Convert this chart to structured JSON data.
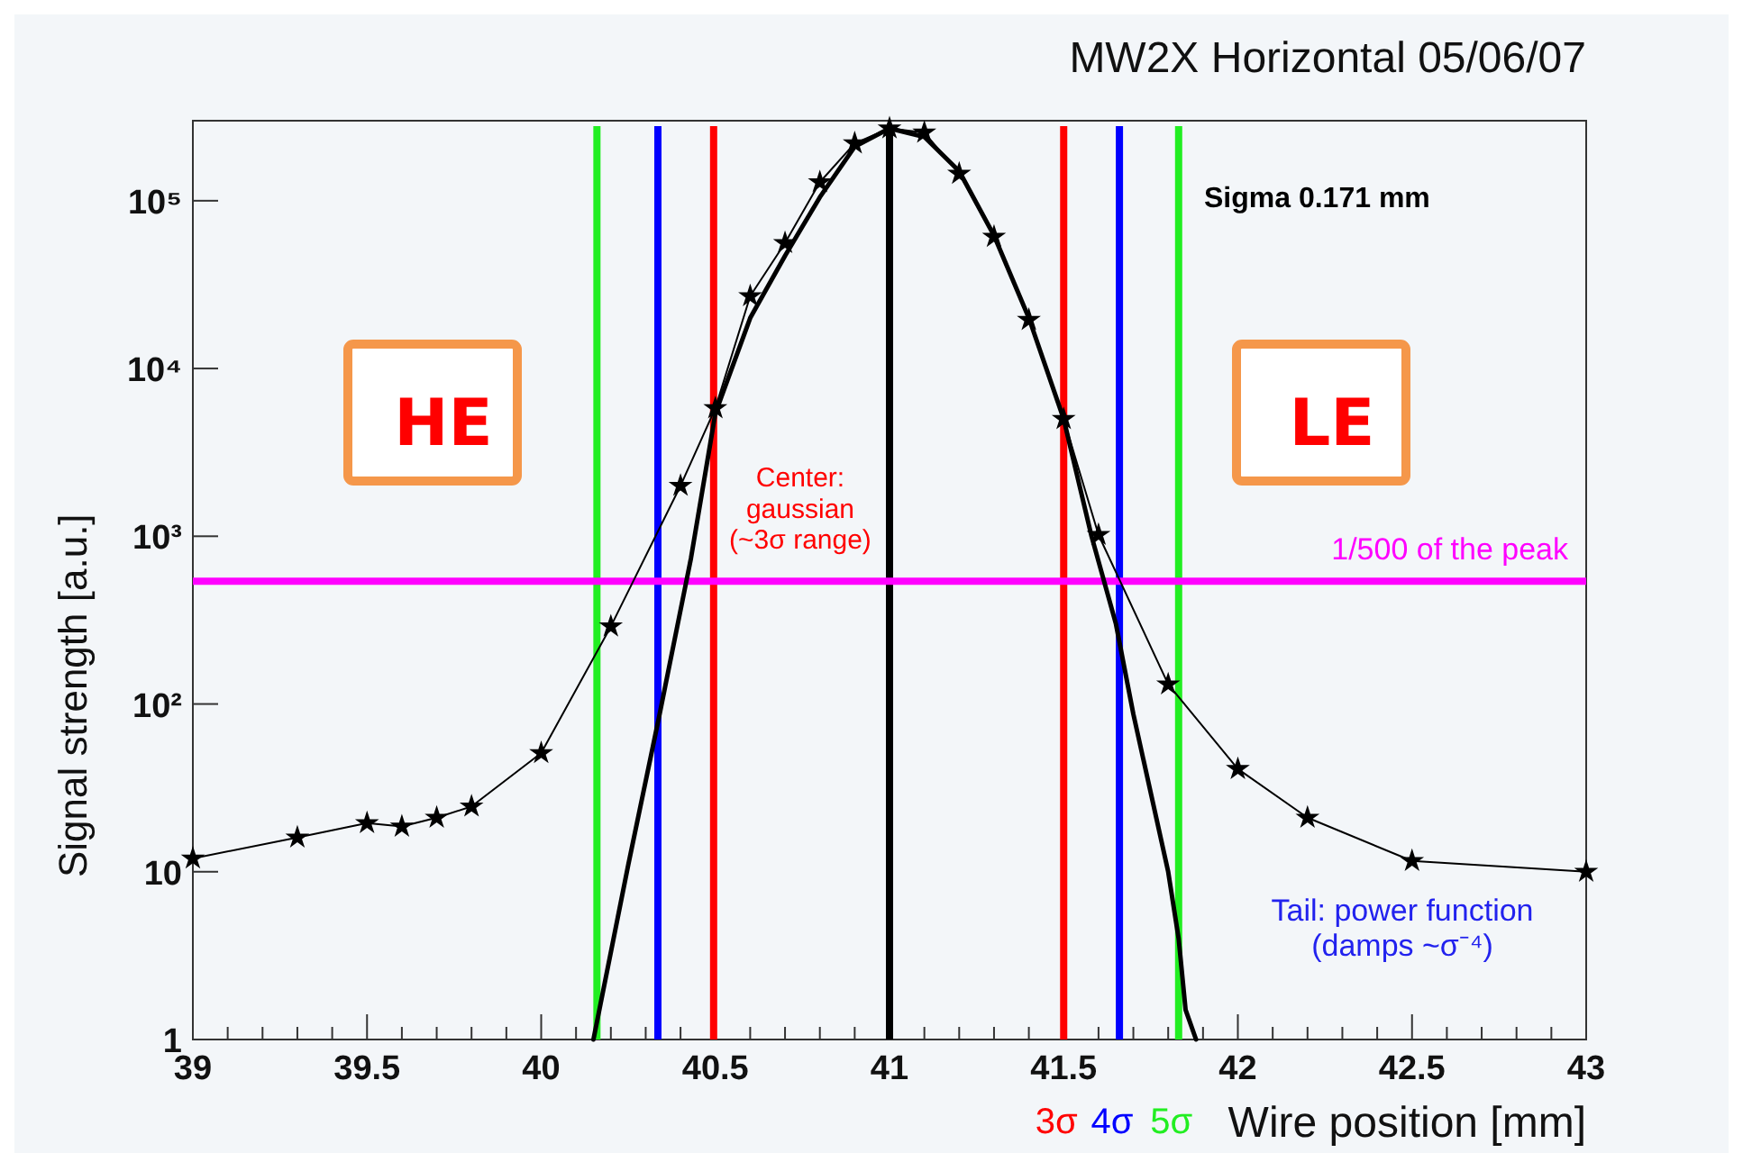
{
  "chart_data": {
    "type": "line",
    "title": "MW2X Horizontal 05/06/07",
    "xlabel": "Wire position [mm]",
    "ylabel": "Signal strength [a.u.]",
    "log": "y",
    "grid": false,
    "xlim": [
      39,
      43
    ],
    "xticks": [
      39,
      {
        "value": 39.1,
        "label": null
      },
      {
        "value": 39.2,
        "label": null
      },
      {
        "value": 39.3,
        "label": null
      },
      {
        "value": 39.4,
        "label": null
      },
      39.5,
      {
        "value": 39.6,
        "label": null
      },
      {
        "value": 39.7,
        "label": null
      },
      {
        "value": 39.8,
        "label": null
      },
      {
        "value": 39.9,
        "label": null
      },
      40,
      {
        "value": 40.1,
        "label": null
      },
      {
        "value": 40.2,
        "label": null
      },
      {
        "value": 40.3,
        "label": null
      },
      {
        "value": 40.4,
        "label": null
      },
      40.5,
      {
        "value": 40.6,
        "label": null
      },
      {
        "value": 40.7,
        "label": null
      },
      {
        "value": 40.8,
        "label": null
      },
      {
        "value": 40.9,
        "label": null
      },
      41,
      {
        "value": 41.1,
        "label": null
      },
      {
        "value": 41.2,
        "label": null
      },
      {
        "value": 41.3,
        "label": null
      },
      {
        "value": 41.4,
        "label": null
      },
      41.5,
      {
        "value": 41.6,
        "label": null
      },
      {
        "value": 41.7,
        "label": null
      },
      {
        "value": 41.8,
        "label": null
      },
      {
        "value": 41.9,
        "label": null
      },
      42,
      {
        "value": 42.1,
        "label": null
      },
      {
        "value": 42.2,
        "label": null
      },
      {
        "value": 42.3,
        "label": null
      },
      {
        "value": 42.4,
        "label": null
      },
      42.5,
      {
        "value": 42.6,
        "label": null
      },
      {
        "value": 42.7,
        "label": null
      },
      {
        "value": 42.8,
        "label": null
      },
      {
        "value": 42.9,
        "label": null
      },
      43
    ],
    "ylim": [
      1,
      300000
    ],
    "yticks": [
      1,
      10,
      {
        "value": 100,
        "label": "10²"
      },
      {
        "value": 1000,
        "label": "10³"
      },
      {
        "value": 10000,
        "label": "10⁴"
      },
      {
        "value": 100000,
        "label": "10⁵"
      }
    ],
    "series": [
      {
        "color": "#000000",
        "marker": "star",
        "line_style": "solid",
        "x": [
          39,
          39.3,
          39.5,
          39.6,
          39.7,
          39.8,
          40,
          40.2,
          40.4,
          40.5,
          40.6,
          40.7,
          40.8,
          40.9,
          41,
          41.1,
          41.2,
          41.3,
          41.4,
          41.5,
          41.6,
          41.8,
          42,
          42.2,
          42.5,
          43
        ],
        "values": [
          12,
          16,
          19.5,
          18.6,
          21,
          24.5,
          51,
          290,
          2000,
          5800,
          27000,
          56000,
          129000,
          220000,
          270000,
          255000,
          145000,
          61000,
          19500,
          5000,
          1020,
          131,
          41,
          21,
          11.6,
          10
        ]
      },
      {
        "color": "#000000",
        "marker": "none",
        "line_style": "solid",
        "x": [
          40.15,
          40.25,
          40.34,
          40.43,
          40.5,
          40.6,
          40.7,
          40.8,
          40.9,
          41,
          41.1,
          41.2,
          41.3,
          41.4,
          41.5,
          41.58,
          41.65,
          41.7,
          41.8,
          41.83,
          41.85,
          41.88
        ],
        "values": [
          1,
          11,
          87,
          740,
          5400,
          20000,
          47000,
          105000,
          210000,
          270000,
          240000,
          150000,
          62000,
          20000,
          5000,
          1000,
          300,
          87,
          10,
          4,
          1.5,
          1
        ]
      }
    ],
    "ref_lines": [
      {
        "axis": "x",
        "value": 40.16,
        "color": "#22ee22"
      },
      {
        "axis": "x",
        "value": 40.335,
        "color": "#0000ff"
      },
      {
        "axis": "x",
        "value": 40.495,
        "color": "#ff0000"
      },
      {
        "axis": "x",
        "value": 41,
        "color": "#000000"
      },
      {
        "axis": "x",
        "value": 41.5,
        "color": "#ff0000",
        "label": "3σ"
      },
      {
        "axis": "x",
        "value": 41.66,
        "color": "#0000ff",
        "label": "4σ"
      },
      {
        "axis": "x",
        "value": 41.83,
        "color": "#22ee22",
        "label": "5σ"
      },
      {
        "axis": "y",
        "value": 540,
        "color": "#ff00ff",
        "label": "1/500 of the peak"
      }
    ],
    "annotations": [
      "Sigma 0.171   mm",
      "Center:\ngaussian\n(~3σ  range)",
      "Tail: power function\n(damps ~σ⁻⁴)",
      "HE",
      "LE"
    ]
  }
}
